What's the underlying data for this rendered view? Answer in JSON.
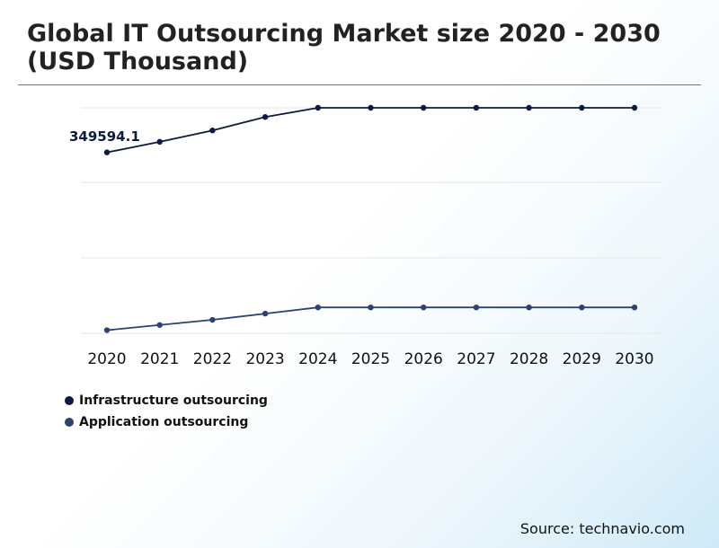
{
  "title": "Global IT Outsourcing Market size 2020 - 2030 (USD Thousand)",
  "source": "Source: technavio.com",
  "colors": {
    "infrastructure": "#0d1b3e",
    "application": "#2d4270",
    "grid": "#e6e6e6"
  },
  "chart_data": {
    "type": "line",
    "title": "Global IT Outsourcing Market size 2020 - 2030 (USD Thousand)",
    "xlabel": "",
    "ylabel": "",
    "categories": [
      "2020",
      "2021",
      "2022",
      "2023",
      "2024",
      "2025",
      "2026",
      "2027",
      "2028",
      "2029",
      "2030"
    ],
    "series": [
      {
        "name": "Infrastructure outsourcing",
        "values": [
          349594.1,
          370000,
          392000,
          418000,
          443000,
          443000,
          443000,
          443000,
          443000,
          443000,
          443000
        ]
      },
      {
        "name": "Application outsourcing",
        "values": [
          6000,
          16000,
          26000,
          38000,
          50000,
          50000,
          50000,
          50000,
          50000,
          50000,
          50000
        ]
      }
    ],
    "annotations": [
      {
        "series": 0,
        "index": 0,
        "text": "349594.1"
      }
    ],
    "ylim": [
      0,
      500000
    ],
    "grid": true,
    "legend": "bottom-left"
  }
}
